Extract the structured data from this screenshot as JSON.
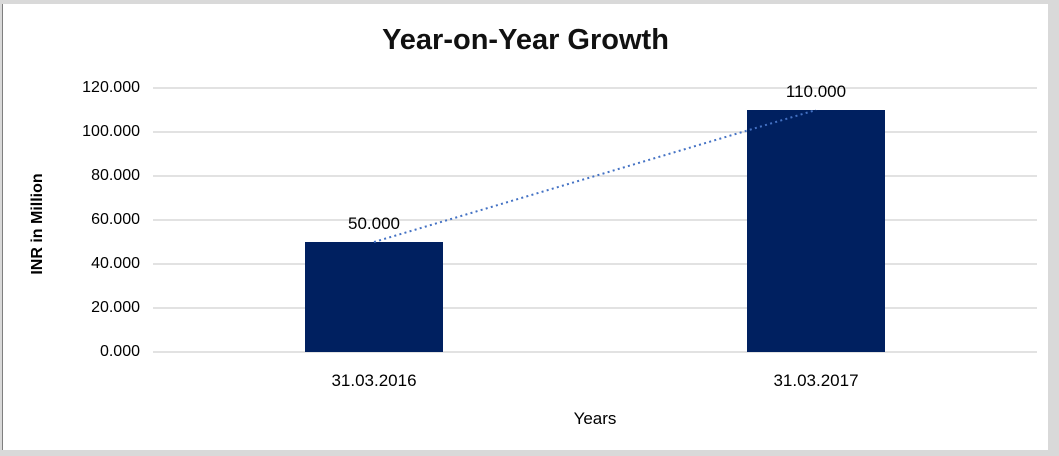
{
  "window": {
    "background": "#FFFFFF",
    "frame_color": "#D9D9D9",
    "left_divider_color": "#7F7F7F"
  },
  "chart_data": {
    "type": "bar",
    "title": "Year-on-Year Growth",
    "xlabel": "Years",
    "ylabel": "INR in Million",
    "categories": [
      "31.03.2016",
      "31.03.2017"
    ],
    "values": [
      50,
      110
    ],
    "data_labels": [
      "50.000",
      "110.000"
    ],
    "ylim": [
      0,
      120
    ],
    "ytick_step": 20,
    "ytick_labels": [
      "0.000",
      "20.000",
      "40.000",
      "60.000",
      "80.000",
      "100.000",
      "120.000"
    ],
    "grid": "horizontal",
    "legend": null,
    "bar_color": "#002060",
    "gridline_color": "#D9D9D9",
    "axis_line_color": "#D9D9D9",
    "text_color": "#000000",
    "trendline": {
      "kind": "linear",
      "style": "dotted",
      "color": "#4472C4",
      "from_value": 50,
      "to_value": 110
    }
  }
}
